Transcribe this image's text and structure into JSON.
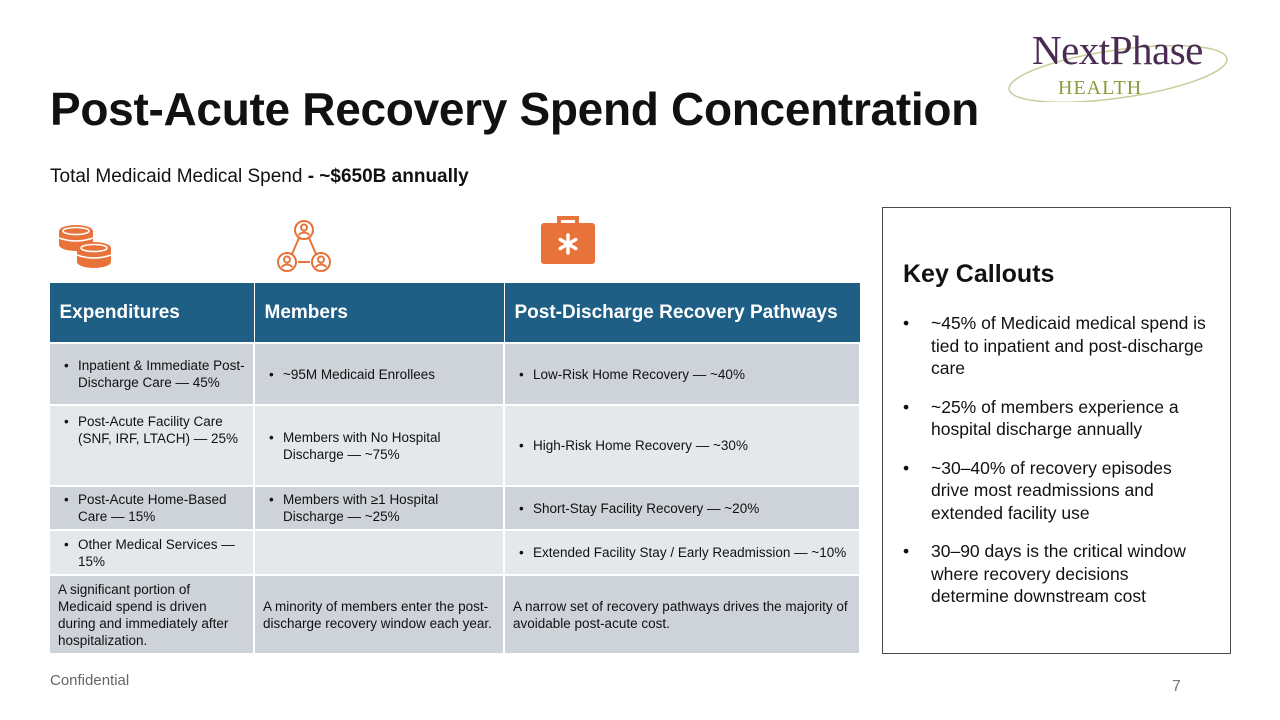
{
  "header": {
    "title": "Post-Acute Recovery Spend Concentration",
    "subtitle_prefix": "Total Medicaid Medical Spend",
    "subtitle_bold": " - ~$650B annually"
  },
  "logo": {
    "name": "NextPhase",
    "sub": "HEALTH"
  },
  "colors": {
    "header_blue": "#1f5f86",
    "accent_orange": "#e8733a",
    "logo_purple": "#4a2b52",
    "logo_green": "#8c9a3a"
  },
  "icons": [
    "coins-icon",
    "network-people-icon",
    "medical-kit-icon"
  ],
  "table": {
    "headers": [
      "Expenditures",
      "Members",
      "Post-Discharge Recovery Pathways"
    ],
    "rows": [
      {
        "c0": "Inpatient & Immediate Post-Discharge Care — 45%",
        "c1": "~95M Medicaid Enrollees",
        "c2": "Low-Risk Home Recovery — ~40%"
      },
      {
        "c0": "Post-Acute Facility Care (SNF, IRF, LTACH) — 25%",
        "c1": "Members with No Hospital Discharge — ~75%",
        "c2": "High-Risk Home Recovery — ~30%"
      },
      {
        "c0": "Post-Acute Home-Based Care — 15%",
        "c1": "Members with ≥1 Hospital Discharge — ~25%",
        "c2": "Short-Stay Facility Recovery — ~20%"
      },
      {
        "c0": "Other Medical Services — 15%",
        "c1": "",
        "c2": "Extended Facility Stay / Early Readmission — ~10%"
      }
    ],
    "summary": [
      "A significant portion of Medicaid spend is driven during and immediately after hospitalization.",
      "A minority of members enter the post-discharge recovery window each year.",
      "A narrow set of recovery pathways drives the majority of avoidable post-acute cost."
    ]
  },
  "callouts": {
    "title": "Key Callouts",
    "items": [
      "~45% of Medicaid medical spend is tied to inpatient and post-discharge care",
      "~25% of members experience a hospital discharge annually",
      "~30–40% of recovery episodes drive most readmissions and extended facility use",
      "30–90 days is the critical window where recovery decisions determine downstream cost"
    ]
  },
  "footer": {
    "confidential": "Confidential",
    "page_number": "7"
  }
}
